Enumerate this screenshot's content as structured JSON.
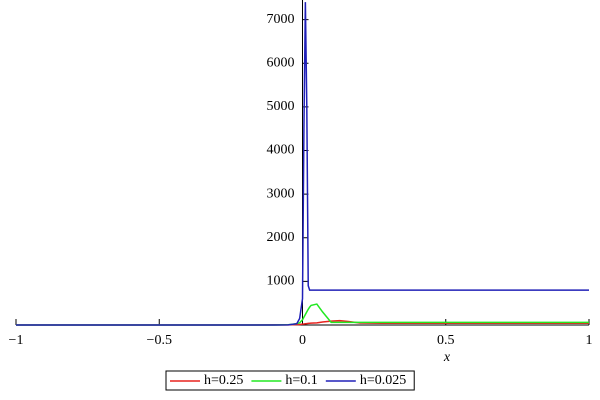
{
  "chart_data": {
    "type": "line",
    "x_label": "x",
    "x": [
      -1,
      -0.5,
      -0.2,
      -0.1,
      -0.05,
      -0.02,
      -0.01,
      0,
      0.005,
      0.01,
      0.015,
      0.02,
      0.025,
      0.03,
      0.05,
      0.07,
      0.1,
      0.13,
      0.16,
      0.2,
      0.3,
      0.5,
      1
    ],
    "series": [
      {
        "name": "h=0.25",
        "color": "#e8231f",
        "values": [
          0,
          0,
          1,
          2,
          3,
          8,
          12,
          20,
          24,
          28,
          32,
          36,
          40,
          44,
          50,
          70,
          90,
          100,
          80,
          45,
          40,
          40,
          40
        ]
      },
      {
        "name": "h=0.1",
        "color": "#22e822",
        "values": [
          0,
          0,
          0,
          1,
          5,
          30,
          50,
          120,
          180,
          240,
          300,
          360,
          410,
          450,
          480,
          300,
          60,
          60,
          60,
          60,
          60,
          60,
          60
        ]
      },
      {
        "name": "h=0.025",
        "color": "#2020b8",
        "values": [
          0,
          0,
          0,
          0,
          2,
          30,
          150,
          600,
          4500,
          7400,
          5000,
          900,
          800,
          800,
          800,
          800,
          800,
          800,
          800,
          800,
          800,
          800,
          800
        ]
      }
    ],
    "xlim": [
      -1,
      1
    ],
    "ylim": [
      0,
      7450
    ],
    "xticks": [
      {
        "value": -1,
        "label": "−1"
      },
      {
        "value": -0.5,
        "label": "−0.5"
      },
      0,
      0.5,
      1
    ],
    "yticks": [
      1000,
      2000,
      3000,
      4000,
      5000,
      6000,
      7000
    ],
    "legend": "bottom"
  }
}
